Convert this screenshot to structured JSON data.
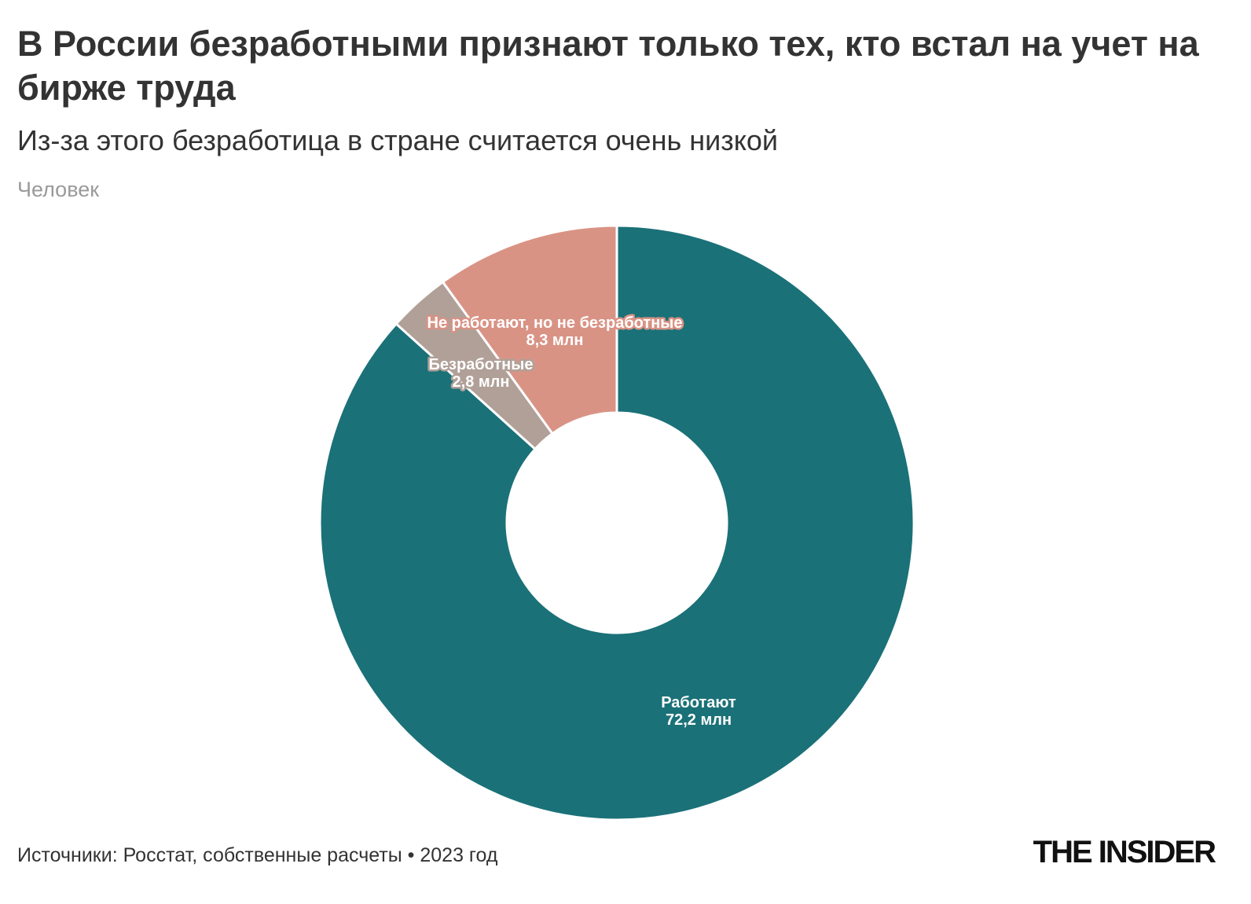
{
  "title": "В России безработными признают только тех, кто встал на учет на бирже труда",
  "subtitle": "Из-за этого безработица в стране считается очень низкой",
  "unit_label": "Человек",
  "source": "Источники: Росстат, собственные расчеты • 2023 год",
  "logo": "THE INSIDER",
  "chart_data": {
    "type": "pie",
    "variant": "donut",
    "start": "top, clockwise",
    "slices": [
      {
        "label": "Работают",
        "value": 72.2,
        "value_label": "72,2 млн",
        "color": "#1b7178"
      },
      {
        "label": "Безработные",
        "value": 2.8,
        "value_label": "2,8 млн",
        "color": "#b0a098"
      },
      {
        "label": "Не работают, но не безработные",
        "value": 8.3,
        "value_label": "8,3 млн",
        "color": "#d99385"
      }
    ]
  }
}
